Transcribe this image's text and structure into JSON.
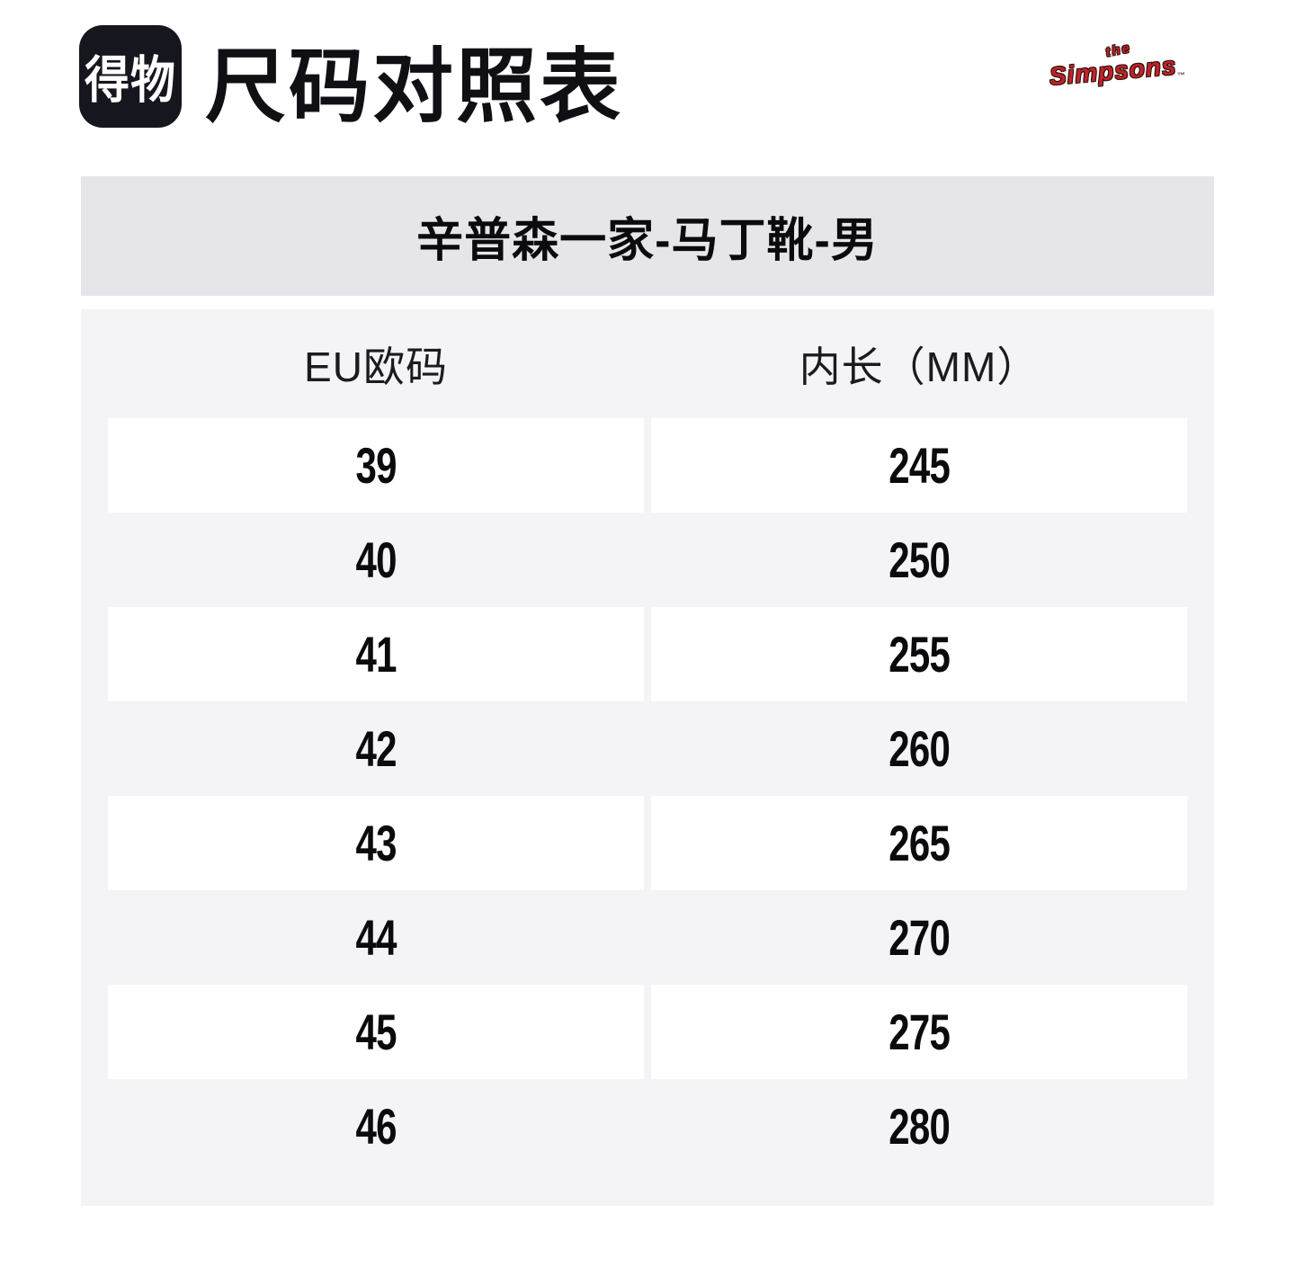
{
  "header": {
    "logo_text": "得物",
    "title": "尺码对照表",
    "brand": {
      "the": "the",
      "name": "Simpsons",
      "tm": "™"
    }
  },
  "banner": {
    "title": "辛普森一家-马丁靴-男"
  },
  "table": {
    "columns": [
      "EU欧码",
      "内长（MM）"
    ],
    "rows": [
      {
        "eu": "39",
        "mm": "245"
      },
      {
        "eu": "40",
        "mm": "250"
      },
      {
        "eu": "41",
        "mm": "255"
      },
      {
        "eu": "42",
        "mm": "260"
      },
      {
        "eu": "43",
        "mm": "265"
      },
      {
        "eu": "44",
        "mm": "270"
      },
      {
        "eu": "45",
        "mm": "275"
      },
      {
        "eu": "46",
        "mm": "280"
      }
    ]
  },
  "colors": {
    "page_bg": "#ffffff",
    "logo_bg": "#16161e",
    "banner_bg": "#e6e5ea",
    "table_bg": "#f4f4f7",
    "cell_bg": "#ffffff",
    "text": "#0b0b0d",
    "simpsons_red": "#bf2329"
  }
}
